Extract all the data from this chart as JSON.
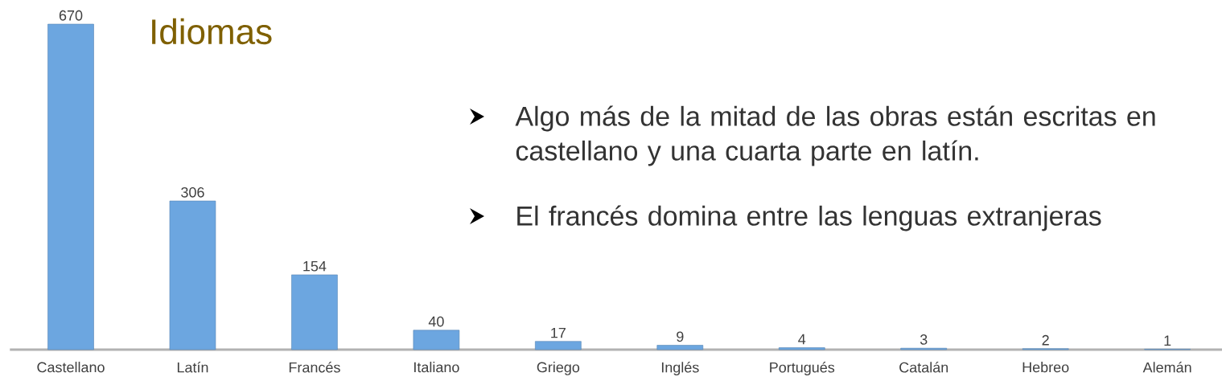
{
  "chart_data": {
    "type": "bar",
    "title": "Idiomas",
    "categories": [
      "Castellano",
      "Latín",
      "Francés",
      "Italiano",
      "Griego",
      "Inglés",
      "Portugués",
      "Catalán",
      "Hebreo",
      "Alemán"
    ],
    "values": [
      670,
      306,
      154,
      40,
      17,
      9,
      4,
      3,
      2,
      1
    ],
    "color": "#6ca6e0",
    "data_labels": true,
    "annotations": [
      "Algo más de la mitad de las obras están escritas en castellano y una cuarta parte en latín.",
      "El francés domina entre las lenguas extranjeras"
    ]
  }
}
